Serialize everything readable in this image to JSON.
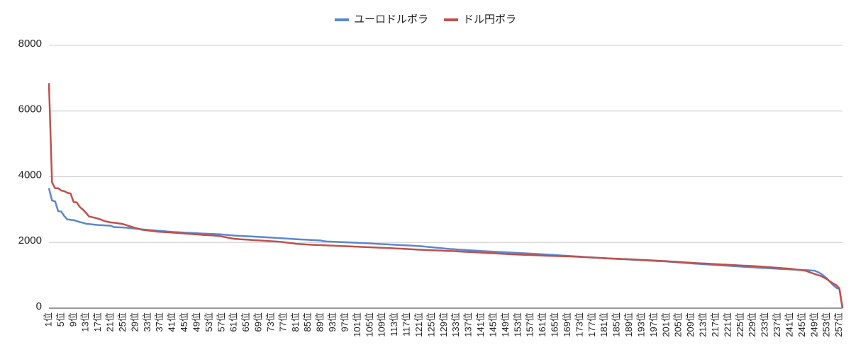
{
  "chart_data": {
    "type": "line",
    "legend": "top",
    "grid": true,
    "ylim": [
      0,
      8000
    ],
    "yticks": [
      0,
      2000,
      4000,
      6000,
      8000
    ],
    "categories": [
      "1位",
      null,
      null,
      null,
      "5位",
      null,
      null,
      null,
      "9位",
      null,
      null,
      null,
      "13位",
      null,
      null,
      null,
      "17位",
      null,
      null,
      null,
      "21位",
      null,
      null,
      null,
      "25位",
      null,
      null,
      null,
      "29位",
      null,
      null,
      null,
      "33位",
      null,
      null,
      null,
      "37位",
      null,
      null,
      null,
      "41位",
      null,
      null,
      null,
      "45位",
      null,
      null,
      null,
      "49位",
      null,
      null,
      null,
      "53位",
      null,
      null,
      null,
      "57位",
      null,
      null,
      null,
      "61位",
      null,
      null,
      null,
      "65位",
      null,
      null,
      null,
      "69位",
      null,
      null,
      null,
      "73位",
      null,
      null,
      null,
      "77位",
      null,
      null,
      null,
      "81位",
      null,
      null,
      null,
      "85位",
      null,
      null,
      null,
      "89位",
      null,
      null,
      null,
      "93位",
      null,
      null,
      null,
      "97位",
      null,
      null,
      null,
      "101位",
      null,
      null,
      null,
      "105位",
      null,
      null,
      null,
      "109位",
      null,
      null,
      null,
      "113位",
      null,
      null,
      null,
      "117位",
      null,
      null,
      null,
      "121位",
      null,
      null,
      null,
      "125位",
      null,
      null,
      null,
      "129位",
      null,
      null,
      null,
      "133位",
      null,
      null,
      null,
      "137位",
      null,
      null,
      null,
      "141位",
      null,
      null,
      null,
      "145位",
      null,
      null,
      null,
      "149位",
      null,
      null,
      null,
      "153位",
      null,
      null,
      null,
      "157位",
      null,
      null,
      null,
      "161位",
      null,
      null,
      null,
      "165位",
      null,
      null,
      null,
      "169位",
      null,
      null,
      null,
      "173位",
      null,
      null,
      null,
      "177位",
      null,
      null,
      null,
      "181位",
      null,
      null,
      null,
      "185位",
      null,
      null,
      null,
      "189位",
      null,
      null,
      null,
      "193位",
      null,
      null,
      null,
      "197位",
      null,
      null,
      null,
      "201位",
      null,
      null,
      null,
      "205位",
      null,
      null,
      null,
      "209位",
      null,
      null,
      null,
      "213位",
      null,
      null,
      null,
      "217位",
      null,
      null,
      null,
      "221位",
      null,
      null,
      null,
      "225位",
      null,
      null,
      null,
      "229位",
      null,
      null,
      null,
      "233位",
      null,
      null,
      null,
      "237位",
      null,
      null,
      null,
      "241位",
      null,
      null,
      null,
      "245位",
      null,
      null,
      null,
      "249位",
      null,
      null,
      null,
      "253位",
      null,
      null,
      null,
      "257位",
      null
    ],
    "series": [
      {
        "name": "ユーロドルボラ",
        "color": "#5b87d0",
        "values": [
          3650,
          3280,
          3250,
          2950,
          2940,
          2800,
          2700,
          2690,
          2680,
          2650,
          2620,
          2600,
          2570,
          2560,
          2550,
          2540,
          2530,
          2525,
          2520,
          2515,
          2510,
          2470,
          2465,
          2460,
          2455,
          2450,
          2440,
          2430,
          2420,
          2410,
          2400,
          2392,
          2384,
          2376,
          2368,
          2360,
          2352,
          2344,
          2336,
          2328,
          2320,
          2315,
          2310,
          2305,
          2300,
          2295,
          2290,
          2285,
          2280,
          2275,
          2270,
          2266,
          2262,
          2258,
          2254,
          2250,
          2242,
          2234,
          2226,
          2218,
          2210,
          2205,
          2200,
          2195,
          2190,
          2185,
          2180,
          2175,
          2170,
          2165,
          2160,
          2154,
          2148,
          2142,
          2136,
          2130,
          2124,
          2118,
          2112,
          2106,
          2100,
          2095,
          2090,
          2085,
          2080,
          2075,
          2070,
          2065,
          2060,
          2040,
          2030,
          2026,
          2022,
          2018,
          2014,
          2010,
          2006,
          2002,
          1998,
          1994,
          1990,
          1985,
          1980,
          1975,
          1970,
          1965,
          1960,
          1955,
          1950,
          1945,
          1940,
          1935,
          1930,
          1925,
          1920,
          1915,
          1910,
          1905,
          1900,
          1895,
          1890,
          1881,
          1872,
          1863,
          1854,
          1845,
          1836,
          1827,
          1818,
          1809,
          1800,
          1794,
          1788,
          1782,
          1776,
          1770,
          1764,
          1758,
          1752,
          1746,
          1740,
          1735,
          1730,
          1725,
          1720,
          1715,
          1710,
          1705,
          1700,
          1695,
          1690,
          1685,
          1680,
          1675,
          1670,
          1665,
          1660,
          1655,
          1650,
          1645,
          1640,
          1634,
          1628,
          1622,
          1616,
          1610,
          1604,
          1598,
          1592,
          1586,
          1580,
          1574,
          1568,
          1562,
          1556,
          1550,
          1544,
          1538,
          1532,
          1526,
          1520,
          1515,
          1510,
          1505,
          1500,
          1495,
          1490,
          1485,
          1480,
          1475,
          1470,
          1465,
          1460,
          1455,
          1450,
          1445,
          1440,
          1435,
          1430,
          1425,
          1420,
          1413,
          1406,
          1399,
          1392,
          1385,
          1378,
          1371,
          1364,
          1357,
          1350,
          1344,
          1338,
          1332,
          1326,
          1320,
          1314,
          1308,
          1302,
          1296,
          1290,
          1284,
          1278,
          1272,
          1266,
          1260,
          1254,
          1248,
          1242,
          1236,
          1230,
          1225,
          1220,
          1215,
          1210,
          1205,
          1200,
          1195,
          1190,
          1185,
          1180,
          1176,
          1172,
          1168,
          1164,
          1160,
          1153,
          1147,
          1140,
          1100,
          1050,
          980,
          900,
          800,
          700,
          620,
          580,
          0
        ]
      },
      {
        "name": "ドル円ボラ",
        "color": "#c0504d",
        "values": [
          6850,
          3830,
          3650,
          3650,
          3580,
          3560,
          3510,
          3490,
          3230,
          3220,
          3080,
          3000,
          2900,
          2790,
          2770,
          2750,
          2720,
          2690,
          2650,
          2630,
          2610,
          2600,
          2590,
          2575,
          2560,
          2530,
          2500,
          2470,
          2440,
          2415,
          2390,
          2378,
          2366,
          2354,
          2342,
          2330,
          2324,
          2318,
          2312,
          2306,
          2300,
          2293,
          2286,
          2279,
          2272,
          2265,
          2258,
          2251,
          2244,
          2237,
          2230,
          2224,
          2218,
          2212,
          2206,
          2200,
          2182,
          2164,
          2146,
          2128,
          2110,
          2104,
          2098,
          2092,
          2086,
          2080,
          2074,
          2068,
          2062,
          2056,
          2050,
          2044,
          2038,
          2032,
          2026,
          2020,
          2008,
          1996,
          1984,
          1972,
          1960,
          1954,
          1948,
          1942,
          1936,
          1930,
          1926,
          1922,
          1918,
          1914,
          1910,
          1906,
          1902,
          1898,
          1894,
          1890,
          1886,
          1882,
          1878,
          1874,
          1870,
          1866,
          1862,
          1858,
          1854,
          1850,
          1846,
          1842,
          1838,
          1834,
          1830,
          1825,
          1820,
          1815,
          1810,
          1805,
          1800,
          1795,
          1790,
          1785,
          1780,
          1776,
          1772,
          1768,
          1764,
          1760,
          1756,
          1752,
          1748,
          1744,
          1740,
          1735,
          1730,
          1725,
          1720,
          1715,
          1710,
          1705,
          1700,
          1695,
          1690,
          1685,
          1680,
          1675,
          1670,
          1665,
          1660,
          1655,
          1650,
          1645,
          1640,
          1636,
          1632,
          1628,
          1624,
          1620,
          1616,
          1612,
          1608,
          1604,
          1600,
          1597,
          1594,
          1591,
          1588,
          1585,
          1582,
          1579,
          1576,
          1573,
          1570,
          1565,
          1560,
          1555,
          1550,
          1545,
          1540,
          1535,
          1530,
          1525,
          1520,
          1516,
          1512,
          1508,
          1504,
          1500,
          1496,
          1492,
          1488,
          1484,
          1480,
          1475,
          1470,
          1465,
          1460,
          1455,
          1450,
          1445,
          1440,
          1435,
          1430,
          1424,
          1418,
          1412,
          1406,
          1400,
          1394,
          1388,
          1382,
          1376,
          1370,
          1365,
          1360,
          1355,
          1350,
          1345,
          1340,
          1335,
          1330,
          1325,
          1320,
          1315,
          1310,
          1305,
          1300,
          1295,
          1290,
          1285,
          1280,
          1275,
          1270,
          1263,
          1256,
          1249,
          1242,
          1235,
          1228,
          1221,
          1214,
          1207,
          1200,
          1188,
          1176,
          1164,
          1152,
          1140,
          1107,
          1073,
          1040,
          1010,
          980,
          930,
          880,
          810,
          750,
          700,
          600,
          0
        ]
      }
    ]
  }
}
